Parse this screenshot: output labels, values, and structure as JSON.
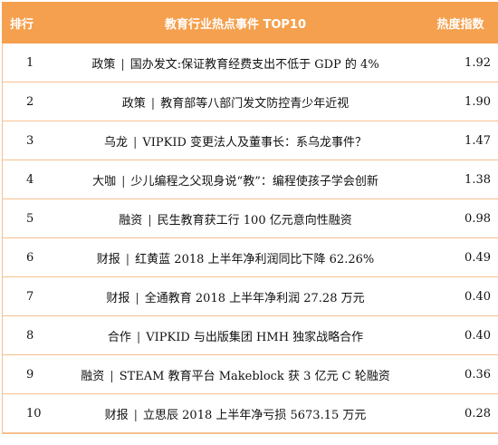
{
  "header": {
    "rank": "排行",
    "title": "教育行业热点事件 TOP10",
    "heat": "热度指数"
  },
  "separator": "|",
  "colors": {
    "header_bg": "#f5a04e",
    "header_text": "#ffffff",
    "row_line": "#f6c08f"
  },
  "rows": [
    {
      "rank": "1",
      "category": "政策",
      "event": "国办发文:保证教育经费支出不低于 GDP 的 4%",
      "heat": "1.92"
    },
    {
      "rank": "2",
      "category": "政策",
      "event": "教育部等八部门发文防控青少年近视",
      "heat": "1.90"
    },
    {
      "rank": "3",
      "category": "乌龙",
      "event": "VIPKID 变更法人及董事长：系乌龙事件？",
      "heat": "1.47"
    },
    {
      "rank": "4",
      "category": "大咖",
      "event": "少儿编程之父现身说“教”：编程使孩子学会创新",
      "heat": "1.38"
    },
    {
      "rank": "5",
      "category": "融资",
      "event": "民生教育获工行 100 亿元意向性融资",
      "heat": "0.98"
    },
    {
      "rank": "6",
      "category": "财报",
      "event": "红黄蓝 2018 上半年净利润同比下降 62.26%",
      "heat": "0.49"
    },
    {
      "rank": "7",
      "category": "财报",
      "event": "全通教育 2018 上半年净利润 27.28 万元",
      "heat": "0.40"
    },
    {
      "rank": "8",
      "category": "合作",
      "event": "VIPKID 与出版集团 HMH 独家战略合作",
      "heat": "0.40"
    },
    {
      "rank": "9",
      "category": "融资",
      "event": "STEAM 教育平台 Makeblock 获 3 亿元 C 轮融资",
      "heat": "0.36"
    },
    {
      "rank": "10",
      "category": "财报",
      "event": "立思辰 2018 上半年净亏损 5673.15 万元",
      "heat": "0.28"
    }
  ]
}
